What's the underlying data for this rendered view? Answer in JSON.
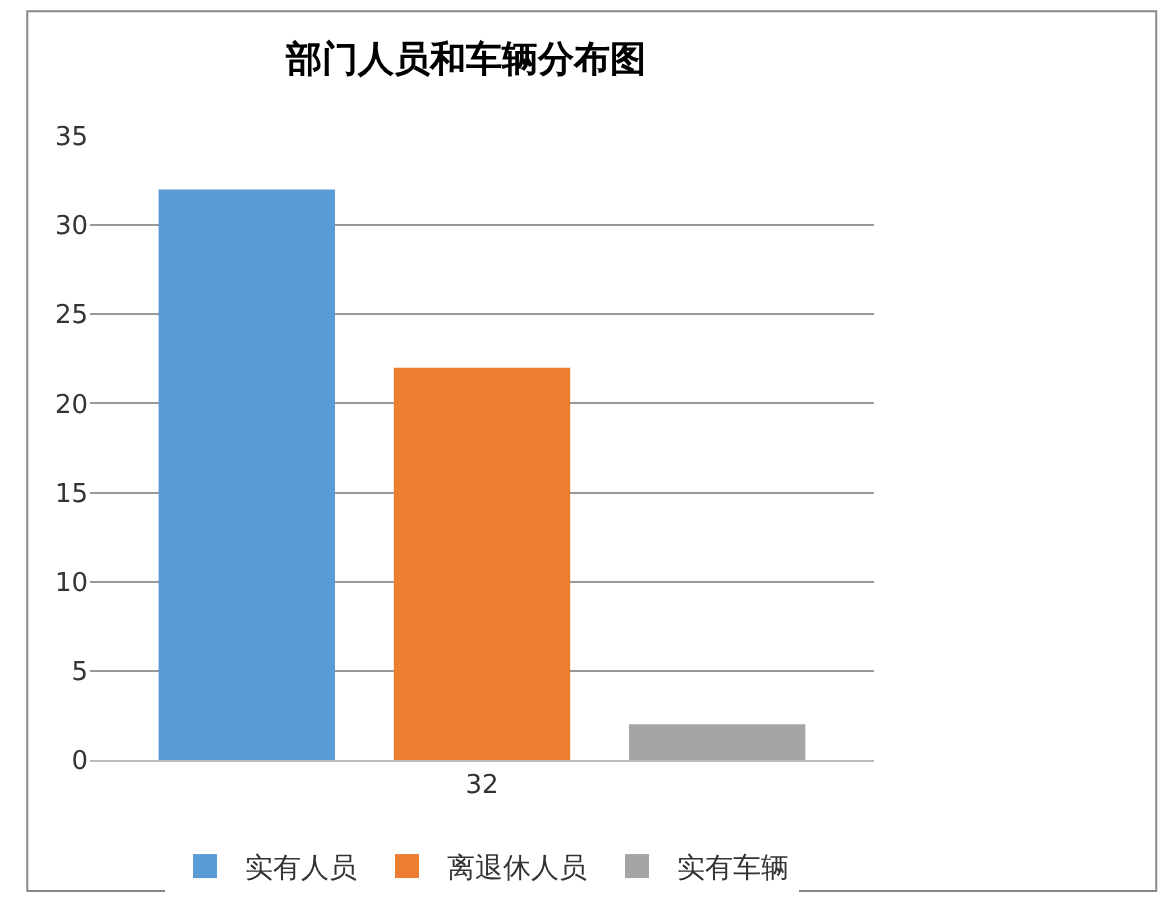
{
  "chart_data": {
    "type": "bar",
    "title": "部门人员和车辆分布图",
    "categories": [
      "32"
    ],
    "series": [
      {
        "name": "实有人员",
        "color": "#5b9bd5",
        "values": [
          32
        ]
      },
      {
        "name": "离退休人员",
        "color": "#ed7d31",
        "values": [
          22
        ]
      },
      {
        "name": "实有车辆",
        "color": "#a5a5a5",
        "values": [
          2
        ]
      }
    ],
    "ylim": [
      0,
      35
    ],
    "yticks": [
      0,
      5,
      10,
      15,
      20,
      25,
      30,
      35
    ],
    "grid": "y",
    "legend": "bottom"
  }
}
